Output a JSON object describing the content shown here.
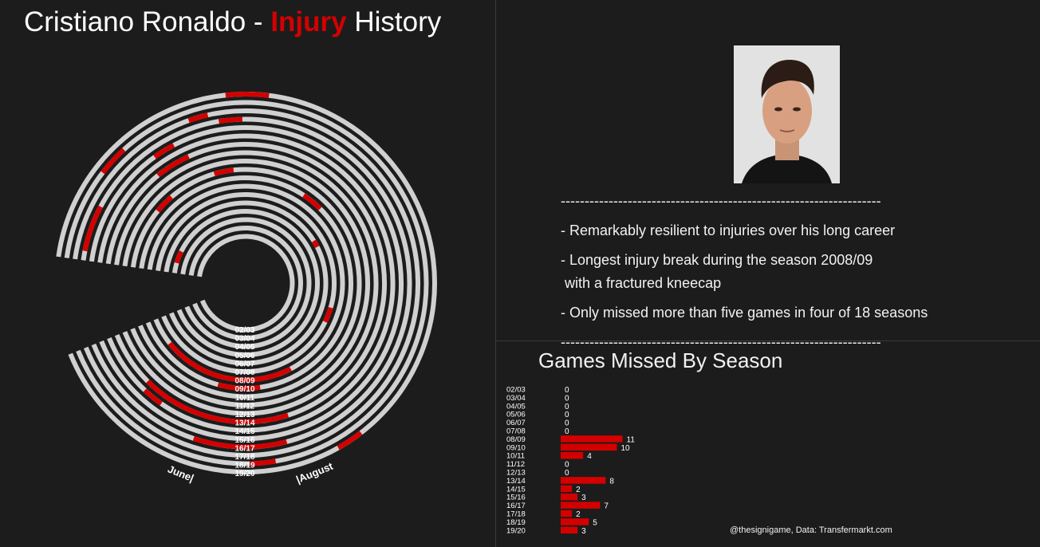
{
  "title": {
    "prefix": "Cristiano Ronaldo - ",
    "accent": "Injury",
    "suffix": " History"
  },
  "colors": {
    "background": "#1c1c1c",
    "ring": "#d0d0d0",
    "injury": "#d40000",
    "text": "#ffffff"
  },
  "photo": {
    "icon": "portrait-photo"
  },
  "notes": {
    "separator": "-------------------------------------------------------------------",
    "items": [
      "- Remarkably resilient to injuries over his long career",
      "- Longest injury break during the season 2008/09",
      " with a fractured kneecap",
      "- Only missed more than five games in four of 18 seasons"
    ]
  },
  "credit": "@thesignigame, Data: Transfermarkt.com",
  "chart_data": [
    {
      "type": "radial",
      "seasons": [
        "02/03",
        "03/04",
        "04/05",
        "05/06",
        "06/07",
        "07/08",
        "08/09",
        "09/10",
        "10/11",
        "11/12",
        "12/13",
        "13/14",
        "14/15",
        "15/16",
        "16/17",
        "17/18",
        "18/19",
        "19/20"
      ],
      "start_label": "|August",
      "end_label": "June|",
      "injury_spans": [
        {
          "season": "05/06",
          "spans": [
            [
              0.945,
              0.975
            ]
          ]
        },
        {
          "season": "06/07",
          "spans": [
            [
              0.56,
              0.575
            ]
          ]
        },
        {
          "season": "07/08",
          "spans": [
            [
              0.4,
              0.43
            ]
          ]
        },
        {
          "season": "08/09",
          "spans": [
            [
              0.05,
              0.29
            ]
          ]
        },
        {
          "season": "09/10",
          "spans": [
            [
              0.16,
              0.23
            ],
            [
              0.615,
              0.65
            ]
          ]
        },
        {
          "season": "10/11",
          "spans": [
            [
              0.77,
              0.8
            ],
            [
              0.875,
              0.905
            ]
          ]
        },
        {
          "season": "13/14",
          "spans": [
            [
              0.07,
              0.26
            ],
            [
              0.825,
              0.87
            ]
          ]
        },
        {
          "season": "14/15",
          "spans": [
            [
              0.075,
              0.1
            ]
          ]
        },
        {
          "season": "15/16",
          "spans": [
            [
              0.835,
              0.86
            ]
          ]
        },
        {
          "season": "16/17",
          "spans": [
            [
              0.15,
              0.25
            ],
            [
              0.755,
              0.78
            ],
            [
              0.94,
              0.99
            ]
          ]
        },
        {
          "season": "17/18",
          "spans": [
            [
              0.79,
              0.81
            ]
          ]
        },
        {
          "season": "18/19",
          "spans": [
            [
              0.21,
              0.235
            ],
            [
              0.88,
              0.91
            ]
          ]
        },
        {
          "season": "19/20",
          "spans": [
            [
              0.295,
              0.32
            ],
            [
              0.73,
              0.77
            ]
          ]
        }
      ]
    },
    {
      "type": "bar",
      "title": "Games Missed By Season",
      "orientation": "horizontal",
      "categories": [
        "02/03",
        "03/04",
        "04/05",
        "05/06",
        "06/07",
        "07/08",
        "08/09",
        "09/10",
        "10/11",
        "11/12",
        "12/13",
        "13/14",
        "14/15",
        "15/16",
        "16/17",
        "17/18",
        "18/19",
        "19/20"
      ],
      "values": [
        0,
        0,
        0,
        0,
        0,
        0,
        11,
        10,
        4,
        0,
        0,
        8,
        2,
        3,
        7,
        2,
        5,
        3
      ]
    }
  ]
}
